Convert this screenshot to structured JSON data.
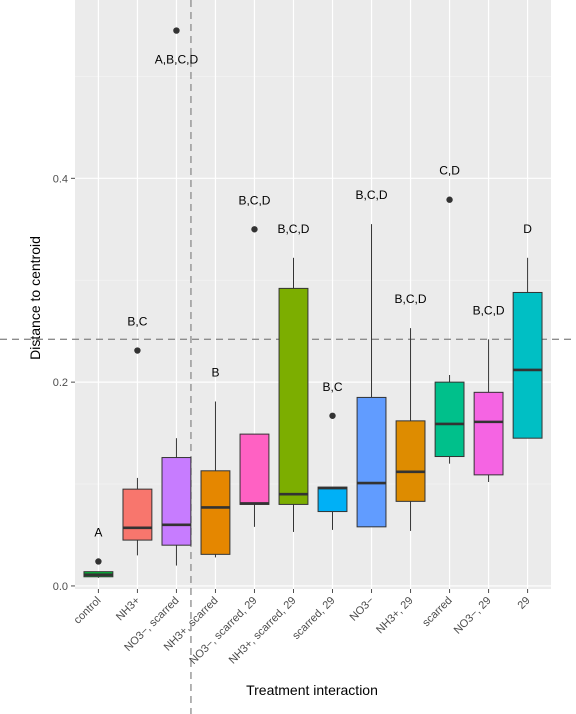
{
  "chart_data": {
    "type": "box",
    "xlabel": "Treatment interaction",
    "ylabel": "Distance to centroid",
    "ylim": [
      -0.003,
      0.575
    ],
    "yticks": [
      0.0,
      0.2,
      0.4
    ],
    "ytick_labels": [
      "0.0",
      "0.2",
      "0.4"
    ],
    "reference_hline": 0.242,
    "reference_vline_after_category": 3,
    "categories": [
      "control",
      "NH3+",
      "NO3−, scarred",
      "NH3+, scarred",
      "NO3−, scarred, 29",
      "NH3+, scarred, 29",
      "scarred, 29",
      "NO3−",
      "NH3+, 29",
      "scarred",
      "NO3−, 29",
      "29"
    ],
    "series": [
      {
        "category": "control",
        "color": "#F8766D",
        "fill": "#00BA38",
        "whisker_low": 0.008,
        "q1": 0.009,
        "median": 0.011,
        "q3": 0.014,
        "whisker_high": 0.014,
        "outliers": [
          0.024
        ],
        "letters": "A"
      },
      {
        "category": "NH3+",
        "fill": "#F8766D",
        "whisker_low": 0.03,
        "q1": 0.045,
        "median": 0.057,
        "q3": 0.095,
        "whisker_high": 0.106,
        "outliers": [
          0.231
        ],
        "letters": "B,C"
      },
      {
        "category": "NO3−, scarred",
        "fill": "#C77CFF",
        "whisker_low": 0.02,
        "q1": 0.04,
        "median": 0.06,
        "q3": 0.126,
        "whisker_high": 0.145,
        "outliers": [
          0.545
        ],
        "letters": "A,B,C,D"
      },
      {
        "category": "NH3+, scarred",
        "fill": "#E58700",
        "whisker_low": 0.028,
        "q1": 0.031,
        "median": 0.077,
        "q3": 0.113,
        "whisker_high": 0.181,
        "outliers": [],
        "letters": "B"
      },
      {
        "category": "NO3−, scarred, 29",
        "fill": "#FF61C3",
        "whisker_low": 0.058,
        "q1": 0.08,
        "median": 0.081,
        "q3": 0.149,
        "whisker_high": 0.149,
        "outliers": [
          0.35
        ],
        "letters": "B,C,D"
      },
      {
        "category": "NH3+, scarred, 29",
        "fill": "#7CAE00",
        "whisker_low": 0.053,
        "q1": 0.08,
        "median": 0.09,
        "q3": 0.292,
        "whisker_high": 0.322,
        "outliers": [],
        "letters": "B,C,D"
      },
      {
        "category": "scarred, 29",
        "fill": "#00B0F6",
        "whisker_low": 0.055,
        "q1": 0.073,
        "median": 0.096,
        "q3": 0.097,
        "whisker_high": 0.097,
        "outliers": [
          0.167
        ],
        "letters": "B,C"
      },
      {
        "category": "NO3−",
        "fill": "#619CFF",
        "whisker_low": 0.058,
        "q1": 0.058,
        "median": 0.101,
        "q3": 0.185,
        "whisker_high": 0.355,
        "outliers": [],
        "letters": "B,C,D"
      },
      {
        "category": "NH3+, 29",
        "fill": "#DE8C00",
        "whisker_low": 0.054,
        "q1": 0.083,
        "median": 0.112,
        "q3": 0.162,
        "whisker_high": 0.253,
        "outliers": [],
        "letters": "B,C,D"
      },
      {
        "category": "scarred",
        "fill": "#00C08B",
        "whisker_low": 0.12,
        "q1": 0.127,
        "median": 0.159,
        "q3": 0.2,
        "whisker_high": 0.207,
        "outliers": [
          0.379
        ],
        "letters": "C,D"
      },
      {
        "category": "NO3−, 29",
        "fill": "#F564E3",
        "whisker_low": 0.102,
        "q1": 0.109,
        "median": 0.161,
        "q3": 0.19,
        "whisker_high": 0.242,
        "outliers": [],
        "letters": "B,C,D"
      },
      {
        "category": "29",
        "fill": "#00BFC4",
        "whisker_low": 0.145,
        "q1": 0.145,
        "median": 0.212,
        "q3": 0.288,
        "whisker_high": 0.322,
        "outliers": [],
        "letters": "D"
      }
    ],
    "grid": true,
    "legend": "none"
  }
}
